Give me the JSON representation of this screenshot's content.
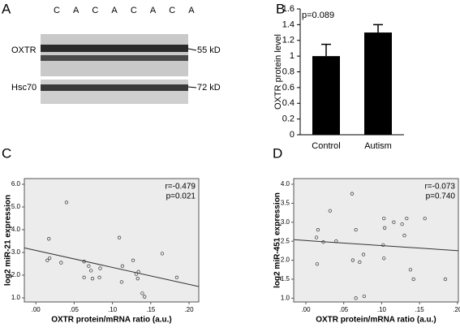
{
  "blot": {
    "panel": "A",
    "lanes": [
      "C",
      "A",
      "C",
      "A",
      "C",
      "A",
      "C",
      "A"
    ],
    "rows": [
      {
        "name": "OXTR",
        "size": "55 kD"
      },
      {
        "name": "Hsc70",
        "size": "72 kD"
      }
    ]
  },
  "chart_data": [
    {
      "type": "bar",
      "panel": "B",
      "ylabel": "OXTR  protein level",
      "annotation": "p=0.089",
      "categories": [
        "Control",
        "Autism"
      ],
      "values": [
        1.0,
        1.3
      ],
      "errors": [
        0.15,
        0.1
      ],
      "color": "#000000",
      "ylim": [
        0,
        1.6
      ],
      "yticks": [
        0,
        0.2,
        0.4,
        0.6,
        0.8,
        1,
        1.2,
        1.4,
        1.6
      ]
    },
    {
      "type": "scatter",
      "panel": "C",
      "xlabel": "OXTR protein/mRNA ratio (a.u.)",
      "ylabel": "log2 miR-21 expression",
      "annotations": [
        "r=-0.479",
        "p=0.021"
      ],
      "x": [
        0.017,
        0.018,
        0.015,
        0.033,
        0.04,
        0.063,
        0.069,
        0.072,
        0.063,
        0.074,
        0.084,
        0.083,
        0.109,
        0.113,
        0.112,
        0.127,
        0.131,
        0.134,
        0.133,
        0.139,
        0.142,
        0.165,
        0.184
      ],
      "values": [
        3.6,
        2.75,
        2.65,
        2.55,
        5.2,
        2.6,
        2.4,
        2.2,
        1.9,
        1.85,
        2.3,
        1.9,
        3.65,
        2.4,
        1.7,
        2.65,
        2.05,
        2.15,
        1.85,
        1.2,
        1.05,
        2.95,
        1.9
      ],
      "fit": {
        "x": [
          -0.015,
          0.2127
        ],
        "values": [
          3.2,
          1.5
        ]
      },
      "xlim": [
        -0.015,
        0.2127
      ],
      "ylim": [
        0.82,
        6.25
      ],
      "xticks": [
        {
          "value": 0,
          "label": ".00"
        },
        {
          "value": 0.05,
          "label": ".05"
        },
        {
          "value": 0.1,
          "label": ".10"
        },
        {
          "value": 0.15,
          "label": ".15"
        },
        {
          "value": 0.2,
          "label": ".20"
        }
      ],
      "yticks": [
        {
          "value": 1,
          "label": "1.0"
        },
        {
          "value": 2,
          "label": "2.0"
        },
        {
          "value": 3,
          "label": "3.0"
        },
        {
          "value": 4,
          "label": "4.0"
        },
        {
          "value": 5,
          "label": "5.0"
        },
        {
          "value": 6,
          "label": "6.0"
        }
      ]
    },
    {
      "type": "scatter",
      "panel": "D",
      "xlabel": "OXTR protein/mRNA ratio (a.u.)",
      "ylabel": "log2 miR-451 expression",
      "annotations": [
        "r=-0.073",
        "p=0.740"
      ],
      "x": [
        0.014,
        0.016,
        0.015,
        0.032,
        0.023,
        0.04,
        0.061,
        0.062,
        0.066,
        0.066,
        0.071,
        0.076,
        0.077,
        0.103,
        0.104,
        0.102,
        0.103,
        0.116,
        0.127,
        0.133,
        0.13,
        0.138,
        0.142,
        0.157,
        0.184
      ],
      "values": [
        2.6,
        2.8,
        1.9,
        3.3,
        2.48,
        2.5,
        3.75,
        2.0,
        2.8,
        1.0,
        1.95,
        2.15,
        1.05,
        3.1,
        2.85,
        2.4,
        2.05,
        3.0,
        2.95,
        3.1,
        2.65,
        1.75,
        1.5,
        3.1,
        1.5
      ],
      "fit": {
        "x": [
          -0.016,
          0.2012
        ],
        "values": [
          2.54,
          2.25
        ]
      },
      "xlim": [
        -0.016,
        0.2012
      ],
      "ylim": [
        0.9,
        4.15
      ],
      "xticks": [
        {
          "value": 0,
          "label": ".00"
        },
        {
          "value": 0.05,
          "label": ".05"
        },
        {
          "value": 0.1,
          "label": ".10"
        },
        {
          "value": 0.15,
          "label": ".15"
        },
        {
          "value": 0.2,
          "label": ".20"
        }
      ],
      "yticks": [
        {
          "value": 1,
          "label": "1.0"
        },
        {
          "value": 1.5,
          "label": "1.5"
        },
        {
          "value": 2,
          "label": "2.0"
        },
        {
          "value": 2.5,
          "label": "2.5"
        },
        {
          "value": 3,
          "label": "3.0"
        },
        {
          "value": 3.5,
          "label": "3.5"
        },
        {
          "value": 4,
          "label": "4.0"
        }
      ]
    }
  ]
}
